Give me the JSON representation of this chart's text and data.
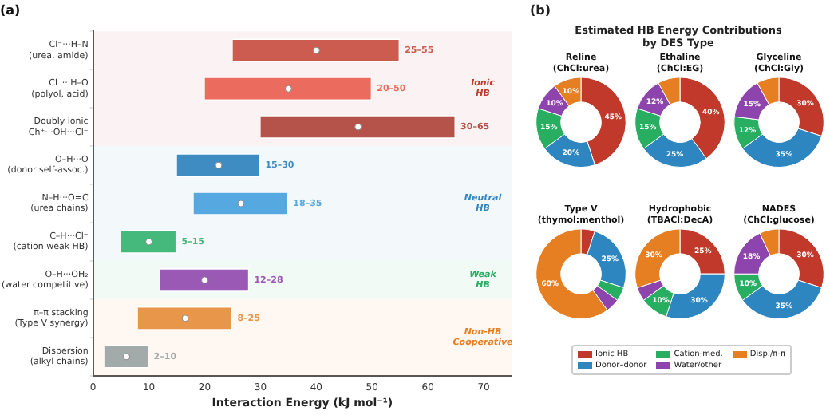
{
  "chart_data": [
    {
      "type": "bar",
      "orientation": "horizontal",
      "title": "(a)",
      "xlabel": "Interaction Energy (kJ mol⁻¹)",
      "categories": [
        "Cl⁻···H–N\n(urea, amide)",
        "Cl⁻···H–O\n(polyol, acid)",
        "Doubly ionic\nCh⁺···OH···Cl⁻",
        "O–H···O\n(donor self-assoc.)",
        "N–H···O=C\n(urea chains)",
        "C–H···Cl⁻\n(cation weak HB)",
        "O–H···OH₂\n(water competitive)",
        "π–π stacking\n(Type V synergy)",
        "Dispersion\n(alkyl chains)"
      ],
      "xlim": [
        0,
        75
      ],
      "xticks": [
        0,
        10,
        20,
        30,
        40,
        50,
        60,
        70
      ],
      "series": [
        {
          "type": "bar",
          "colors": [
            "#cd5c50",
            "#ec6b5f",
            "#b5534a",
            "#3f8cc2",
            "#55a8e0",
            "#45b87b",
            "#9b59b6",
            "#e8964a",
            "#a3abaa"
          ],
          "base": [
            25,
            20,
            30,
            15,
            18,
            5,
            12,
            8,
            2
          ],
          "values": [
            30,
            30,
            35,
            15,
            17,
            10,
            16,
            17,
            8
          ],
          "value_labels": [
            "25–55",
            "20–50",
            "30–65",
            "15–30",
            "18–35",
            "5–15",
            "12–28",
            "8–25",
            "2–10"
          ]
        },
        {
          "type": "scatter",
          "color": "#ffffff",
          "marker": "circle",
          "values": [
            40,
            35,
            47.5,
            22.5,
            26.5,
            10,
            20,
            16.5,
            6
          ]
        }
      ],
      "bands": [
        {
          "axis": "y",
          "from": "Cl⁻···H–N\n(urea, amide)",
          "to": "Doubly ionic\nCh⁺···OH···Cl⁻",
          "label": "Ionic\nHB",
          "color": "#c0392b"
        },
        {
          "axis": "y",
          "from": "O–H···O\n(donor self-assoc.)",
          "to": "C–H···Cl⁻\n(cation weak HB)",
          "label": "Neutral\nHB",
          "color": "#2e86c1"
        },
        {
          "axis": "y",
          "from": "O–H···OH₂\n(water competitive)",
          "to": "O–H···OH₂\n(water competitive)",
          "label": "Weak\nHB",
          "color": "#27ae60"
        },
        {
          "axis": "y",
          "from": "π–π stacking\n(Type V synergy)",
          "to": "Dispersion\n(alkyl chains)",
          "label": "Non-HB\nCooperative",
          "color": "#e67e22"
        }
      ]
    },
    {
      "type": "donut",
      "title": "(b)",
      "subtitle": "Estimated HB Energy Contributions\nby DES Type",
      "legend": "bottom",
      "categories": [
        "Ionic HB",
        "Donor–donor",
        "Cation-med.",
        "Water/other",
        "Disp./π-π"
      ],
      "colors": [
        "#c0392b",
        "#2e86c1",
        "#27ae60",
        "#8e44ad",
        "#e67e22"
      ],
      "series": [
        {
          "name": "Reline\n(ChCl:urea)",
          "values": [
            45,
            20,
            15,
            10,
            10
          ],
          "value_labels": [
            "45%",
            "20%",
            "15%",
            "10%",
            "10%"
          ]
        },
        {
          "name": "Ethaline\n(ChCl:EG)",
          "values": [
            40,
            25,
            15,
            12,
            8
          ],
          "value_labels": [
            "40%",
            "25%",
            "15%",
            "12%",
            null
          ]
        },
        {
          "name": "Glyceline\n(ChCl:Gly)",
          "values": [
            30,
            35,
            12,
            15,
            8
          ],
          "value_labels": [
            "30%",
            "35%",
            "12%",
            "15%",
            null
          ]
        },
        {
          "name": "Type V\n(thymol:menthol)",
          "values": [
            5,
            25,
            5,
            5,
            60
          ],
          "value_labels": [
            null,
            "25%",
            null,
            null,
            "60%"
          ]
        },
        {
          "name": "Hydrophobic\n(TBACl:DecA)",
          "values": [
            25,
            30,
            10,
            5,
            30
          ],
          "value_labels": [
            "25%",
            "30%",
            "10%",
            null,
            "30%"
          ]
        },
        {
          "name": "NADES\n(ChCl:glucose)",
          "values": [
            30,
            35,
            10,
            18,
            7
          ],
          "value_labels": [
            "30%",
            "35%",
            "10%",
            "18%",
            null
          ]
        }
      ]
    }
  ]
}
